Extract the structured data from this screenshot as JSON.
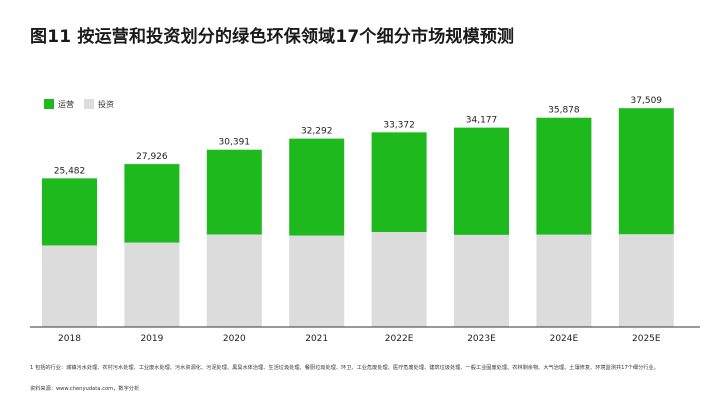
{
  "title": "图11  按运营和投资划分的绿色环保领域17个细分市场规模预测",
  "footnote": "1 包括的行业：城镇污水处理、农村污水处理、工业废水处理、污水资源化、污泥处理、黑臭水体治理、生活垃圾处理、餐厨垃圾处理、环卫、工业危废处理、医疗危废处理、建筑垃圾处理、一般工业固废处理、农林剩余物、大气治理、土壤修复、环境监测共17个细分行业。",
  "source": "资料来源：www.chenyudata.com，数字分析",
  "colors": {
    "operation": "#1db91d",
    "investment": "#dcdcdc",
    "axis": "#333333"
  },
  "chart_data": {
    "type": "bar",
    "stacked": true,
    "categories": [
      "2018",
      "2019",
      "2020",
      "2021",
      "2022E",
      "2023E",
      "2024E",
      "2025E"
    ],
    "totals": [
      "25,482",
      "27,926",
      "30,391",
      "32,292",
      "33,372",
      "34,177",
      "35,878",
      "37,509"
    ],
    "total_values": [
      25482,
      27926,
      30391,
      32292,
      33372,
      34177,
      35878,
      37509
    ],
    "series": [
      {
        "name": "运营",
        "values": [
          11500,
          13450,
          14530,
          16610,
          17090,
          18380,
          20040,
          21600
        ]
      },
      {
        "name": "投资",
        "values": [
          13982,
          14476,
          15861,
          15682,
          16282,
          15797,
          15838,
          15909
        ]
      }
    ],
    "ylim": [
      0,
      42000
    ],
    "legend_position": "top-left",
    "grid": false
  }
}
